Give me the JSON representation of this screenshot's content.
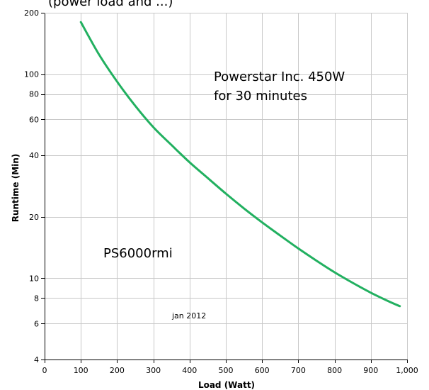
{
  "top_fragment": "(power load and ...)",
  "chart_data": {
    "type": "line",
    "x_scale": "linear",
    "y_scale": "log",
    "xlim": [
      0,
      1000
    ],
    "ylim": [
      4,
      200
    ],
    "xlabel": "Load (Watt)",
    "ylabel": "Runtime (Min)",
    "grid": true,
    "x_ticks": [
      0,
      100,
      200,
      300,
      400,
      500,
      600,
      700,
      800,
      900,
      1000
    ],
    "x_tick_labels": [
      "0",
      "100",
      "200",
      "300",
      "400",
      "500",
      "600",
      "700",
      "800",
      "900",
      "1,000"
    ],
    "y_ticks": [
      4,
      6,
      8,
      10,
      20,
      40,
      60,
      80,
      100,
      200
    ],
    "y_tick_labels": [
      "4",
      "6",
      "8",
      "10",
      "20",
      "40",
      "60",
      "80",
      "100",
      "200"
    ],
    "series": [
      {
        "color": "#22b060",
        "x": [
          100,
          150,
          200,
          250,
          300,
          350,
          400,
          450,
          500,
          550,
          600,
          650,
          700,
          750,
          800,
          850,
          900,
          950,
          980
        ],
        "y": [
          180,
          125,
          92,
          70,
          55,
          45,
          37,
          31,
          26,
          22,
          18.8,
          16.2,
          14,
          12.2,
          10.7,
          9.5,
          8.5,
          7.7,
          7.3
        ]
      }
    ],
    "annotations": {
      "title_line1": "Powerstar Inc. 450W",
      "title_line2": "for 30 minutes",
      "model_label": "PS6000rmi",
      "date_label": "jan 2012"
    }
  }
}
